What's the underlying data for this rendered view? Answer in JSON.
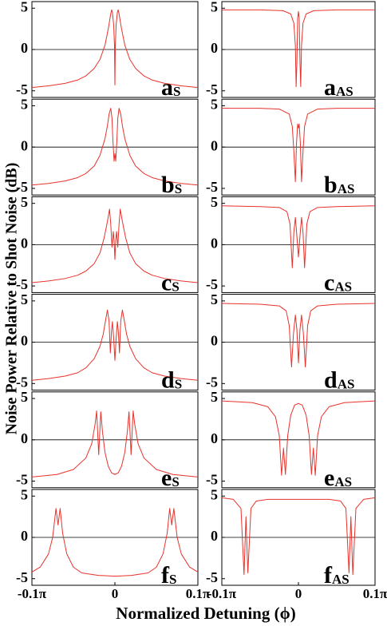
{
  "chart_data": [
    {
      "type": "line",
      "label": "a",
      "label_sub": "S",
      "xlim": [
        -0.1,
        0.1
      ],
      "ylim": [
        -5.8,
        5.8
      ],
      "yticks": [
        -5,
        0,
        5
      ],
      "hline": 0,
      "x": [
        -0.1,
        -0.08,
        -0.06,
        -0.045,
        -0.035,
        -0.025,
        -0.018,
        -0.012,
        -0.008,
        -0.005,
        -0.004,
        -0.003,
        -0.0015,
        -0.0005,
        0,
        0.0005,
        0.0015,
        0.003,
        0.004,
        0.005,
        0.008,
        0.012,
        0.018,
        0.025,
        0.035,
        0.045,
        0.06,
        0.08,
        0.1
      ],
      "series": [
        {
          "color": "#e8322c",
          "values": [
            -4.6,
            -4.4,
            -4.1,
            -3.7,
            -3.2,
            -2.3,
            -1.2,
            0.5,
            2.5,
            4.3,
            4.8,
            4.5,
            3.0,
            0.5,
            -4.3,
            0.5,
            3.0,
            4.5,
            4.8,
            4.3,
            2.5,
            0.5,
            -1.2,
            -2.3,
            -3.2,
            -3.7,
            -4.1,
            -4.4,
            -4.6
          ]
        }
      ]
    },
    {
      "type": "line",
      "label": "a",
      "label_sub": "AS",
      "xlim": [
        -0.1,
        0.1
      ],
      "ylim": [
        -5.8,
        5.8
      ],
      "yticks": [
        -5,
        0,
        5
      ],
      "hline": 0,
      "x": [
        -0.1,
        -0.05,
        -0.02,
        -0.01,
        -0.006,
        -0.004,
        -0.003,
        -0.002,
        -0.001,
        0,
        0.001,
        0.002,
        0.003,
        0.004,
        0.006,
        0.01,
        0.02,
        0.05,
        0.1
      ],
      "series": [
        {
          "color": "#e8322c",
          "values": [
            4.8,
            4.8,
            4.7,
            4.3,
            3.2,
            0.5,
            -4.5,
            -1.5,
            3.8,
            4.6,
            3.8,
            -1.5,
            -4.5,
            0.5,
            3.2,
            4.3,
            4.7,
            4.8,
            4.8
          ]
        }
      ]
    },
    {
      "type": "line",
      "label": "b",
      "label_sub": "S",
      "xlim": [
        -0.1,
        0.1
      ],
      "ylim": [
        -5.8,
        5.8
      ],
      "yticks": [
        -5,
        0,
        5
      ],
      "hline": 0,
      "x": [
        -0.1,
        -0.08,
        -0.06,
        -0.045,
        -0.035,
        -0.025,
        -0.018,
        -0.012,
        -0.009,
        -0.007,
        -0.005,
        -0.0035,
        -0.0025,
        -0.001,
        0,
        0.001,
        0.0025,
        0.0035,
        0.005,
        0.007,
        0.009,
        0.012,
        0.018,
        0.025,
        0.035,
        0.045,
        0.06,
        0.08,
        0.1
      ],
      "series": [
        {
          "color": "#e8322c",
          "values": [
            -4.6,
            -4.4,
            -4.1,
            -3.7,
            -3.2,
            -2.3,
            -1.0,
            1.0,
            2.6,
            4.0,
            4.7,
            3.5,
            1.0,
            -1.7,
            -0.8,
            -1.7,
            1.0,
            3.5,
            4.7,
            4.0,
            2.6,
            1.0,
            -1.0,
            -2.3,
            -3.2,
            -3.7,
            -4.1,
            -4.4,
            -4.6
          ]
        }
      ]
    },
    {
      "type": "line",
      "label": "b",
      "label_sub": "AS",
      "xlim": [
        -0.1,
        0.1
      ],
      "ylim": [
        -5.8,
        5.8
      ],
      "yticks": [
        -5,
        0,
        5
      ],
      "hline": 0,
      "x": [
        -0.1,
        -0.05,
        -0.025,
        -0.012,
        -0.008,
        -0.006,
        -0.004,
        -0.0025,
        -0.001,
        0,
        0.001,
        0.0025,
        0.004,
        0.006,
        0.008,
        0.012,
        0.025,
        0.05,
        0.1
      ],
      "series": [
        {
          "color": "#e8322c",
          "values": [
            4.7,
            4.7,
            4.6,
            4.0,
            2.5,
            -0.5,
            -4.2,
            0.5,
            2.8,
            2.3,
            2.8,
            0.5,
            -4.2,
            -0.5,
            2.5,
            4.0,
            4.6,
            4.7,
            4.7
          ]
        }
      ]
    },
    {
      "type": "line",
      "label": "c",
      "label_sub": "S",
      "xlim": [
        -0.1,
        0.1
      ],
      "ylim": [
        -5.8,
        5.8
      ],
      "yticks": [
        -5,
        0,
        5
      ],
      "hline": 0,
      "x": [
        -0.1,
        -0.08,
        -0.06,
        -0.045,
        -0.035,
        -0.025,
        -0.018,
        -0.013,
        -0.009,
        -0.0065,
        -0.005,
        -0.0035,
        -0.002,
        -0.001,
        0,
        0.001,
        0.002,
        0.0035,
        0.005,
        0.0065,
        0.009,
        0.013,
        0.018,
        0.025,
        0.035,
        0.045,
        0.06,
        0.08,
        0.1
      ],
      "series": [
        {
          "color": "#e8322c",
          "values": [
            -4.6,
            -4.4,
            -4.1,
            -3.7,
            -3.2,
            -2.3,
            -1.0,
            0.8,
            2.8,
            4.3,
            2.5,
            -0.3,
            1.6,
            0.5,
            -1.8,
            0.5,
            1.6,
            -0.3,
            2.5,
            4.3,
            2.8,
            0.8,
            -1.0,
            -2.3,
            -3.2,
            -3.7,
            -4.1,
            -4.4,
            -4.6
          ]
        }
      ]
    },
    {
      "type": "line",
      "label": "c",
      "label_sub": "AS",
      "xlim": [
        -0.1,
        0.1
      ],
      "ylim": [
        -5.8,
        5.8
      ],
      "yticks": [
        -5,
        0,
        5
      ],
      "hline": 0,
      "x": [
        -0.1,
        -0.05,
        -0.025,
        -0.015,
        -0.011,
        -0.008,
        -0.006,
        -0.004,
        -0.002,
        0,
        0.002,
        0.004,
        0.006,
        0.008,
        0.011,
        0.015,
        0.025,
        0.05,
        0.1
      ],
      "series": [
        {
          "color": "#e8322c",
          "values": [
            4.7,
            4.6,
            4.5,
            4.0,
            2.5,
            -2.8,
            1.5,
            3.3,
            1.0,
            -1.5,
            1.0,
            3.3,
            1.5,
            -2.8,
            2.5,
            4.0,
            4.5,
            4.6,
            4.7
          ]
        }
      ]
    },
    {
      "type": "line",
      "label": "d",
      "label_sub": "S",
      "xlim": [
        -0.1,
        0.1
      ],
      "ylim": [
        -5.8,
        5.8
      ],
      "yticks": [
        -5,
        0,
        5
      ],
      "hline": 0,
      "x": [
        -0.1,
        -0.08,
        -0.06,
        -0.045,
        -0.035,
        -0.025,
        -0.018,
        -0.014,
        -0.011,
        -0.009,
        -0.007,
        -0.0055,
        -0.004,
        -0.003,
        -0.0015,
        0,
        0.0015,
        0.003,
        0.004,
        0.0055,
        0.007,
        0.009,
        0.011,
        0.014,
        0.018,
        0.025,
        0.035,
        0.045,
        0.06,
        0.08,
        0.1
      ],
      "series": [
        {
          "color": "#e8322c",
          "values": [
            -4.6,
            -4.4,
            -4.1,
            -3.7,
            -3.1,
            -2.0,
            -0.5,
            1.0,
            2.8,
            3.9,
            2.5,
            -1.3,
            1.5,
            2.5,
            0.5,
            -2.2,
            0.5,
            2.5,
            1.5,
            -1.3,
            2.5,
            3.9,
            2.8,
            1.0,
            -0.5,
            -2.0,
            -3.1,
            -3.7,
            -4.1,
            -4.4,
            -4.6
          ]
        }
      ]
    },
    {
      "type": "line",
      "label": "d",
      "label_sub": "AS",
      "xlim": [
        -0.1,
        0.1
      ],
      "ylim": [
        -5.8,
        5.8
      ],
      "yticks": [
        -5,
        0,
        5
      ],
      "hline": 0,
      "x": [
        -0.1,
        -0.05,
        -0.025,
        -0.016,
        -0.012,
        -0.009,
        -0.0065,
        -0.004,
        -0.002,
        0,
        0.002,
        0.004,
        0.0065,
        0.009,
        0.012,
        0.016,
        0.025,
        0.05,
        0.1
      ],
      "series": [
        {
          "color": "#e8322c",
          "values": [
            4.7,
            4.6,
            4.4,
            3.8,
            2.0,
            -3.0,
            1.0,
            3.3,
            1.5,
            -2.5,
            1.5,
            3.3,
            1.0,
            -3.0,
            2.0,
            3.8,
            4.4,
            4.6,
            4.7
          ]
        }
      ]
    },
    {
      "type": "line",
      "label": "e",
      "label_sub": "S",
      "xlim": [
        -0.1,
        0.1
      ],
      "ylim": [
        -5.8,
        5.8
      ],
      "yticks": [
        -5,
        0,
        5
      ],
      "hline": 0,
      "x": [
        -0.1,
        -0.07,
        -0.05,
        -0.035,
        -0.028,
        -0.024,
        -0.022,
        -0.0195,
        -0.017,
        -0.015,
        -0.012,
        -0.008,
        -0.004,
        0,
        0.004,
        0.008,
        0.012,
        0.015,
        0.017,
        0.0195,
        0.022,
        0.024,
        0.028,
        0.035,
        0.05,
        0.07,
        0.1
      ],
      "series": [
        {
          "color": "#e8322c",
          "values": [
            -4.5,
            -4.2,
            -3.6,
            -2.2,
            -0.5,
            1.8,
            3.5,
            -1.8,
            3.4,
            1.0,
            -1.5,
            -3.2,
            -4.0,
            -4.2,
            -4.0,
            -3.2,
            -1.5,
            1.0,
            3.4,
            -1.8,
            3.5,
            1.8,
            -0.5,
            -2.2,
            -3.6,
            -4.2,
            -4.5
          ]
        }
      ]
    },
    {
      "type": "line",
      "label": "e",
      "label_sub": "AS",
      "xlim": [
        -0.1,
        0.1
      ],
      "ylim": [
        -5.8,
        5.8
      ],
      "yticks": [
        -5,
        0,
        5
      ],
      "hline": 0,
      "x": [
        -0.1,
        -0.06,
        -0.04,
        -0.03,
        -0.025,
        -0.022,
        -0.0195,
        -0.017,
        -0.014,
        -0.01,
        -0.005,
        0,
        0.005,
        0.01,
        0.014,
        0.017,
        0.0195,
        0.022,
        0.025,
        0.03,
        0.04,
        0.06,
        0.1
      ],
      "series": [
        {
          "color": "#e8322c",
          "values": [
            4.7,
            4.5,
            4.0,
            2.8,
            0.5,
            -4.3,
            -1.0,
            -4.2,
            0.5,
            3.0,
            4.2,
            4.4,
            4.2,
            3.0,
            0.5,
            -4.2,
            -1.0,
            -4.3,
            0.5,
            2.8,
            4.0,
            4.5,
            4.7
          ]
        }
      ]
    },
    {
      "type": "line",
      "label": "f",
      "label_sub": "S",
      "xlim": [
        -0.1,
        0.1
      ],
      "ylim": [
        -5.8,
        5.8
      ],
      "yticks": [
        -5,
        0,
        5
      ],
      "hline": 0,
      "xticks": [
        {
          "value": -0.1,
          "label": "-0.1π"
        },
        0,
        {
          "value": 0.1,
          "label": "0.1π"
        }
      ],
      "x": [
        -0.1,
        -0.09,
        -0.08,
        -0.075,
        -0.071,
        -0.0685,
        -0.066,
        -0.063,
        -0.058,
        -0.05,
        -0.04,
        -0.02,
        0,
        0.02,
        0.04,
        0.05,
        0.058,
        0.063,
        0.066,
        0.0685,
        0.071,
        0.075,
        0.08,
        0.09,
        0.1
      ],
      "series": [
        {
          "color": "#e8322c",
          "values": [
            -4.2,
            -3.6,
            -2.0,
            0.0,
            3.5,
            1.5,
            3.5,
            0.5,
            -2.0,
            -3.6,
            -4.3,
            -4.6,
            -4.7,
            -4.6,
            -4.3,
            -3.6,
            -2.0,
            0.5,
            3.5,
            1.5,
            3.5,
            0.0,
            -2.0,
            -3.6,
            -4.2
          ]
        }
      ]
    },
    {
      "type": "line",
      "label": "f",
      "label_sub": "AS",
      "xlim": [
        -0.1,
        0.1
      ],
      "ylim": [
        -5.8,
        5.8
      ],
      "yticks": [
        -5,
        0,
        5
      ],
      "hline": 0,
      "xticks": [
        {
          "value": -0.1,
          "label": "-0.1π"
        },
        0,
        {
          "value": 0.1,
          "label": "0.1π"
        }
      ],
      "x": [
        -0.1,
        -0.085,
        -0.075,
        -0.071,
        -0.0685,
        -0.066,
        -0.062,
        -0.055,
        -0.04,
        0,
        0.04,
        0.055,
        0.062,
        0.066,
        0.0685,
        0.071,
        0.075,
        0.085,
        0.1
      ],
      "series": [
        {
          "color": "#e8322c",
          "values": [
            4.8,
            4.6,
            3.5,
            -4.5,
            2.5,
            -4.3,
            3.5,
            4.4,
            4.6,
            4.6,
            4.6,
            4.4,
            3.5,
            -4.3,
            2.5,
            -4.5,
            3.5,
            4.6,
            4.8
          ]
        }
      ]
    }
  ],
  "ylabel": "Noise Power Relative to Shot Noise (dB)",
  "xlabel": "Normalized Detuning (ϕ)"
}
